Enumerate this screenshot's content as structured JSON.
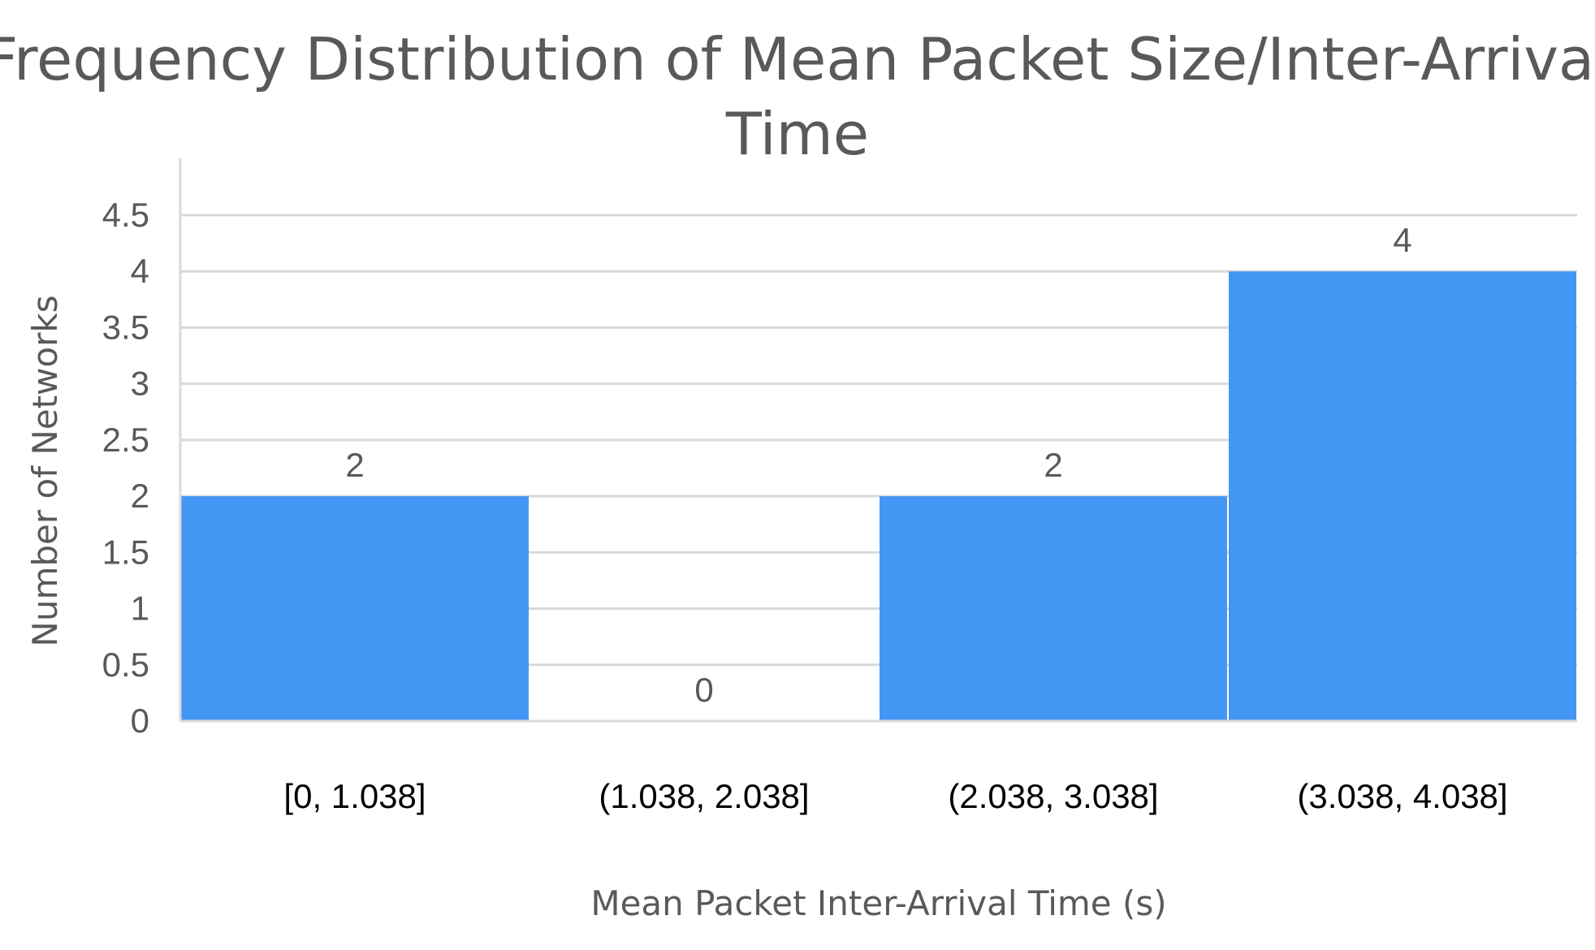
{
  "chart_data": {
    "type": "bar",
    "title_lines": [
      "Frequency Distribution of Mean Packet Size/Inter-Arrival",
      "Time"
    ],
    "xlabel": "Mean Packet Inter-Arrival Time (s)",
    "ylabel": "Number of Networks",
    "categories": [
      "[0, 1.038]",
      "(1.038, 2.038]",
      "(2.038, 3.038]",
      "(3.038, 4.038]"
    ],
    "values": [
      2,
      0,
      2,
      4
    ],
    "data_labels": [
      "2",
      "0",
      "2",
      "4"
    ],
    "ylim": [
      0,
      4.5
    ],
    "y_ticks": [
      "0",
      "0.5",
      "1",
      "1.5",
      "2",
      "2.5",
      "3",
      "3.5",
      "4",
      "4.5"
    ],
    "grid": true,
    "legend": "none",
    "bar_color": "#4496F4",
    "gridline_color": "#D9D9D9",
    "text_color": "#595959"
  }
}
